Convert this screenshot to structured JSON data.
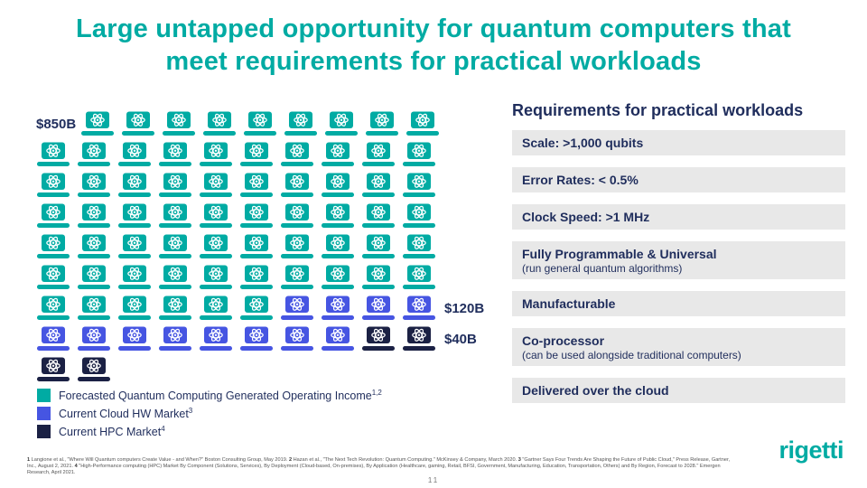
{
  "title": {
    "line1": "Large untapped opportunity for quantum computers that",
    "line2": "meet requirements for practical workloads"
  },
  "colors": {
    "teal": "#00aba3",
    "blue": "#4655e2",
    "dark": "#1b2144",
    "navy_text": "#1f2d5c",
    "box_bg": "#e8e8e8"
  },
  "chart_data": {
    "type": "pictogram",
    "icon": "laptop-atom",
    "series": [
      {
        "name": "Forecasted Quantum Computing Generated Operating Income",
        "label": "$850B",
        "value_billions_usd": 850,
        "color_key": "teal",
        "icon_count": 65
      },
      {
        "name": "Current Cloud HW Market",
        "label": "$120B",
        "value_billions_usd": 120,
        "color_key": "blue",
        "icon_count": 12
      },
      {
        "name": "Current HPC Market",
        "label": "$40B",
        "value_billions_usd": 40,
        "color_key": "dark",
        "icon_count": 4
      }
    ],
    "rows": [
      {
        "label_left": "$850B",
        "icons": [
          [
            "teal",
            9
          ]
        ]
      },
      {
        "icons": [
          [
            "teal",
            10
          ]
        ]
      },
      {
        "icons": [
          [
            "teal",
            10
          ]
        ]
      },
      {
        "icons": [
          [
            "teal",
            10
          ]
        ]
      },
      {
        "icons": [
          [
            "teal",
            10
          ]
        ]
      },
      {
        "icons": [
          [
            "teal",
            10
          ]
        ]
      },
      {
        "icons": [
          [
            "teal",
            6
          ],
          [
            "blue",
            4
          ]
        ],
        "label_right": "$120B"
      },
      {
        "icons": [
          [
            "blue",
            8
          ],
          [
            "dark",
            2
          ]
        ],
        "label_right": "$40B"
      },
      {
        "icons": [
          [
            "dark",
            2
          ]
        ]
      }
    ]
  },
  "legend": [
    {
      "label": "Forecasted Quantum Computing Generated Operating Income",
      "sup": "1,2",
      "color_key": "teal"
    },
    {
      "label": "Current Cloud HW Market",
      "sup": "3",
      "color_key": "blue"
    },
    {
      "label": "Current HPC Market",
      "sup": "4",
      "color_key": "dark"
    }
  ],
  "requirements": {
    "header": "Requirements for practical workloads",
    "items": [
      {
        "title": "Scale: >1,000 qubits"
      },
      {
        "title": "Error Rates: < 0.5%"
      },
      {
        "title": "Clock Speed: >1 MHz"
      },
      {
        "title": "Fully Programmable & Universal",
        "subtitle": "(run general quantum algorithms)"
      },
      {
        "title": "Manufacturable"
      },
      {
        "title": "Co-processor",
        "subtitle": "(can be used alongside traditional computers)"
      },
      {
        "title": "Delivered over the cloud"
      }
    ]
  },
  "footnotes": [
    {
      "num": "1",
      "text": "Langione et al., \"Where Will Quantum computers Create Value - and When?\" Boston Consulting Group, May 2019."
    },
    {
      "num": "2",
      "text": "Hazan et al., \"The Next Tech Revolution: Quantum Computing.\" McKinsey & Company, March 2020."
    },
    {
      "num": "3",
      "text": "\"Gartner Says Four Trends Are Shaping the Future of Public Cloud,\" Press Release, Gartner, Inc., August 2, 2021."
    },
    {
      "num": "4",
      "text": "\"High-Performance computing (HPC) Market By Component (Solutions, Services), By Deployment (Cloud-based, On-premises), By Application (Healthcare, gaming, Retail, BFSI, Government, Manufacturing, Education, Transportation, Others) and By Region, Forecast to 2028.\" Emergen Research, April 2021."
    }
  ],
  "page_number": "11",
  "logo": "rigetti"
}
